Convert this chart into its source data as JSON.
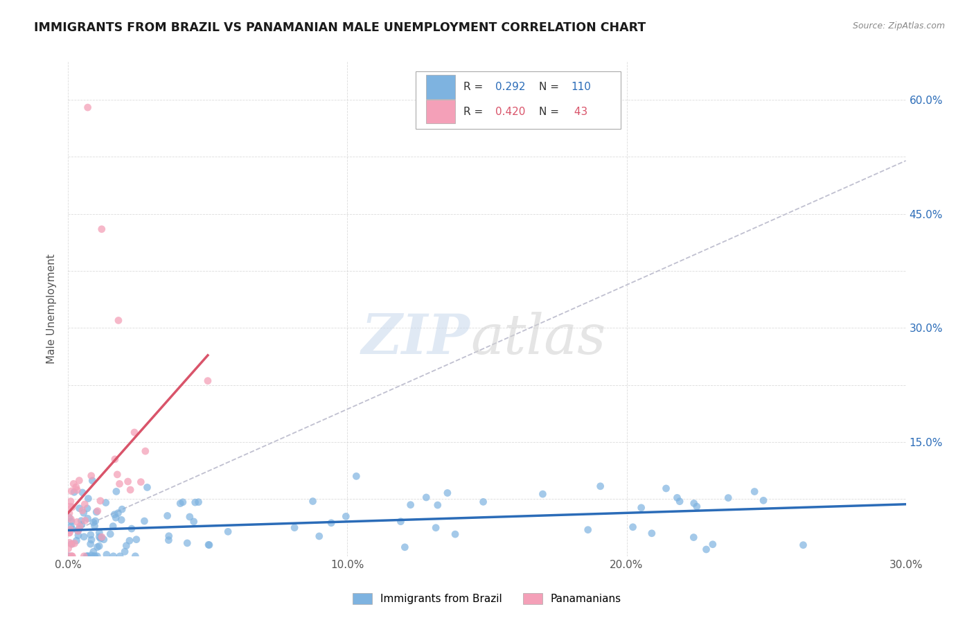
{
  "title": "IMMIGRANTS FROM BRAZIL VS PANAMANIAN MALE UNEMPLOYMENT CORRELATION CHART",
  "source_text": "Source: ZipAtlas.com",
  "ylabel": "Male Unemployment",
  "xlim": [
    0.0,
    0.3
  ],
  "ylim": [
    0.0,
    0.65
  ],
  "color_brazil": "#7eb3e0",
  "color_panama": "#f4a0b8",
  "color_line_brazil": "#2b6cb8",
  "color_line_panama": "#d9546a",
  "color_grid": "#cccccc",
  "color_trend": "#c0c0d0",
  "title_fontsize": 12.5,
  "axis_label_fontsize": 11,
  "legend_r1": "0.292",
  "legend_n1": "110",
  "legend_r2": "0.420",
  "legend_n2": " 43",
  "watermark_zip": "ZIP",
  "watermark_atlas": "atlas"
}
